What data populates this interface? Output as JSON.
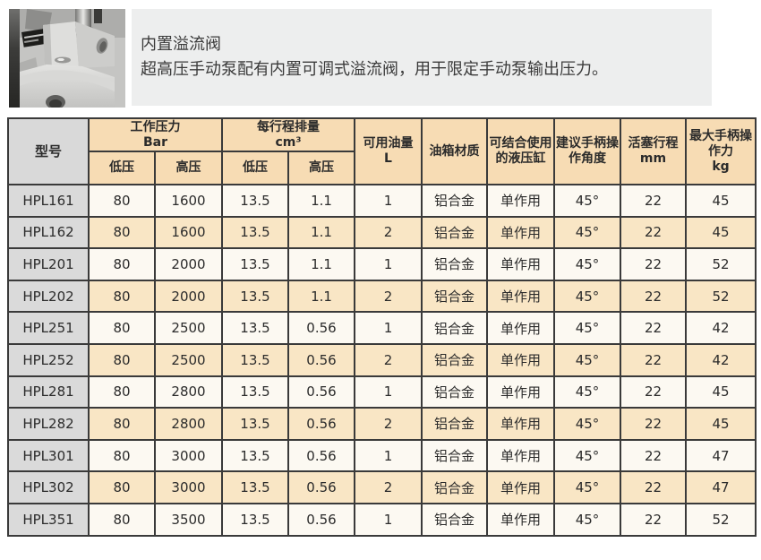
{
  "intro": {
    "title": "内置溢流阀",
    "description": "超高压手动泵配有内置可调式溢流阀，用于限定手动泵输出压力。"
  },
  "colors": {
    "intro_box_bg": "#edeeee",
    "header_bg": "#f7dcb4",
    "model_column_bg": "#dadada",
    "row_light_bg": "#fcf9f2",
    "row_peach_bg": "#f9e6c5",
    "table_border": "#3a3a3a"
  },
  "table": {
    "header": {
      "model": "型号",
      "working_pressure": "工作压力",
      "working_pressure_unit": "Bar",
      "stroke_displacement": "每行程排量",
      "stroke_displacement_unit": "cm³",
      "low_pressure_bar": "低压",
      "high_pressure_bar": "高压",
      "low_pressure_cm3": "低压",
      "high_pressure_cm3": "高压",
      "usable_oil": "可用油量",
      "usable_oil_unit": "L",
      "tank_material": "油箱材质",
      "cylinder_compat_line1": "可结合使用",
      "cylinder_compat_line2": "的液压缸",
      "handle_angle_line1": "建议手柄操",
      "handle_angle_line2": "作角度",
      "piston_stroke": "活塞行程",
      "piston_stroke_unit": "mm",
      "max_force_line1": "最大手柄操",
      "max_force_line2": "作力",
      "max_force_unit": "kg"
    },
    "rows": [
      [
        "HPL161",
        "80",
        "1600",
        "13.5",
        "1.1",
        "1",
        "铝合金",
        "单作用",
        "45°",
        "22",
        "45"
      ],
      [
        "HPL162",
        "80",
        "1600",
        "13.5",
        "1.1",
        "2",
        "铝合金",
        "单作用",
        "45°",
        "22",
        "45"
      ],
      [
        "HPL201",
        "80",
        "2000",
        "13.5",
        "1.1",
        "1",
        "铝合金",
        "单作用",
        "45°",
        "22",
        "52"
      ],
      [
        "HPL202",
        "80",
        "2000",
        "13.5",
        "1.1",
        "2",
        "铝合金",
        "单作用",
        "45°",
        "22",
        "52"
      ],
      [
        "HPL251",
        "80",
        "2500",
        "13.5",
        "0.56",
        "1",
        "铝合金",
        "单作用",
        "45°",
        "22",
        "42"
      ],
      [
        "HPL252",
        "80",
        "2500",
        "13.5",
        "0.56",
        "2",
        "铝合金",
        "单作用",
        "45°",
        "22",
        "42"
      ],
      [
        "HPL281",
        "80",
        "2800",
        "13.5",
        "0.56",
        "1",
        "铝合金",
        "单作用",
        "45°",
        "22",
        "45"
      ],
      [
        "HPL282",
        "80",
        "2800",
        "13.5",
        "0.56",
        "2",
        "铝合金",
        "单作用",
        "45°",
        "22",
        "45"
      ],
      [
        "HPL301",
        "80",
        "3000",
        "13.5",
        "0.56",
        "1",
        "铝合金",
        "单作用",
        "45°",
        "22",
        "47"
      ],
      [
        "HPL302",
        "80",
        "3000",
        "13.5",
        "0.56",
        "2",
        "铝合金",
        "单作用",
        "45°",
        "22",
        "47"
      ],
      [
        "HPL351",
        "80",
        "3500",
        "13.5",
        "0.56",
        "1",
        "铝合金",
        "单作用",
        "45°",
        "22",
        "52"
      ]
    ]
  }
}
